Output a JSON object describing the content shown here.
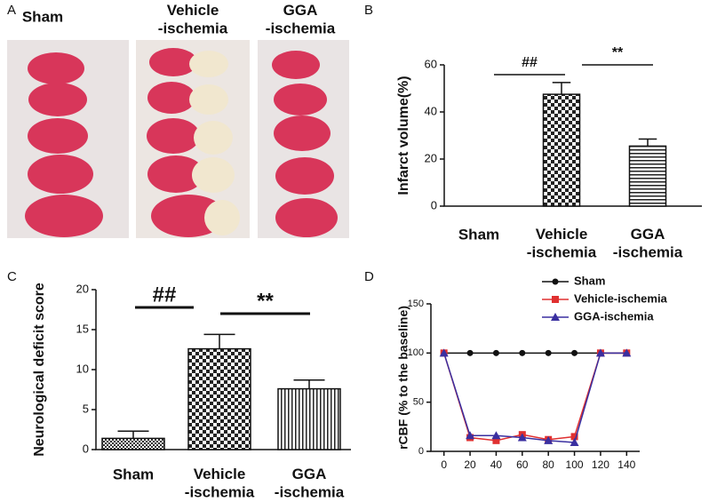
{
  "panel_a": {
    "label": "A",
    "columns": [
      "Sham",
      "Vehicle\n-ischemia",
      "GGA\n-ischemia"
    ]
  },
  "chart_data": [
    {
      "type": "bar",
      "panel": "B",
      "y_label": "Infarct volume(%)",
      "categories": [
        "Sham",
        "Vehicle\n-ischemia",
        "GGA\n-ischemia"
      ],
      "values": [
        0,
        47.5,
        25.5
      ],
      "errors": [
        0,
        5,
        3
      ],
      "fills": [
        "checker-fine",
        "checker",
        "horizontal-lines"
      ],
      "ylim": [
        0,
        60
      ],
      "yticks": [
        0,
        20,
        40,
        60
      ],
      "annotations": [
        "##",
        "**"
      ]
    },
    {
      "type": "bar",
      "panel": "C",
      "y_label": "Neurological deficit score",
      "categories": [
        "Sham",
        "Vehicle\n-ischemia",
        "GGA\n-ischemia"
      ],
      "values": [
        1.4,
        12.6,
        7.6
      ],
      "errors": [
        0.9,
        1.8,
        1.1
      ],
      "fills": [
        "checker-fine",
        "checker",
        "vertical-lines"
      ],
      "ylim": [
        0,
        20
      ],
      "yticks": [
        0,
        5,
        10,
        15,
        20
      ],
      "annotations": [
        "##",
        "**"
      ]
    },
    {
      "type": "line",
      "panel": "D",
      "y_label": "rCBF (% to the baseline)",
      "x": [
        0,
        20,
        40,
        60,
        80,
        100,
        120,
        140
      ],
      "series": [
        {
          "name": "Sham",
          "color": "#111111",
          "marker": "circle",
          "values": [
            100,
            100,
            100,
            100,
            100,
            100,
            100,
            100
          ]
        },
        {
          "name": "Vehicle-ischemia",
          "color": "#e03030",
          "marker": "square",
          "values": [
            100,
            14,
            11,
            17,
            12,
            15,
            100,
            100
          ]
        },
        {
          "name": "GGA-ischemia",
          "color": "#3a2fa0",
          "marker": "triangle",
          "values": [
            100,
            16,
            16,
            14,
            11,
            9,
            100,
            100
          ]
        }
      ],
      "xlim": [
        -10,
        150
      ],
      "xticks": [
        0,
        20,
        40,
        60,
        80,
        100,
        120,
        140
      ],
      "ylim": [
        0,
        150
      ],
      "yticks": [
        0,
        50,
        100,
        150
      ]
    }
  ]
}
